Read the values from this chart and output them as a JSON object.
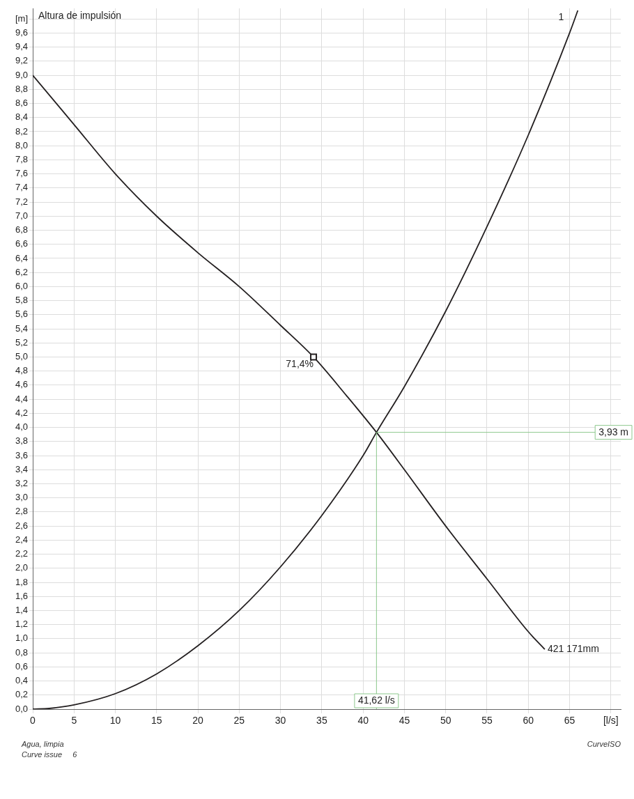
{
  "chart_data": {
    "type": "line",
    "title": "Altura de impulsión",
    "xlim": [
      0,
      71.2
    ],
    "ylim": [
      0,
      9.95
    ],
    "xticks": [
      0,
      5,
      10,
      15,
      20,
      25,
      30,
      35,
      40,
      45,
      50,
      55,
      60,
      65,
      {
        "value": 70,
        "label": "[l/s]"
      }
    ],
    "yticks": [
      {
        "value": 0,
        "label": "0,0"
      },
      {
        "value": 0.2,
        "label": "0,2"
      },
      {
        "value": 0.4,
        "label": "0,4"
      },
      {
        "value": 0.6,
        "label": "0,6"
      },
      {
        "value": 0.8,
        "label": "0,8"
      },
      {
        "value": 1,
        "label": "1,0"
      },
      {
        "value": 1.2,
        "label": "1,2"
      },
      {
        "value": 1.4,
        "label": "1,4"
      },
      {
        "value": 1.6,
        "label": "1,6"
      },
      {
        "value": 1.8,
        "label": "1,8"
      },
      {
        "value": 2,
        "label": "2,0"
      },
      {
        "value": 2.2,
        "label": "2,2"
      },
      {
        "value": 2.4,
        "label": "2,4"
      },
      {
        "value": 2.6,
        "label": "2,6"
      },
      {
        "value": 2.8,
        "label": "2,8"
      },
      {
        "value": 3,
        "label": "3,0"
      },
      {
        "value": 3.2,
        "label": "3,2"
      },
      {
        "value": 3.4,
        "label": "3,4"
      },
      {
        "value": 3.6,
        "label": "3,6"
      },
      {
        "value": 3.8,
        "label": "3,8"
      },
      {
        "value": 4,
        "label": "4,0"
      },
      {
        "value": 4.2,
        "label": "4,2"
      },
      {
        "value": 4.4,
        "label": "4,4"
      },
      {
        "value": 4.6,
        "label": "4,6"
      },
      {
        "value": 4.8,
        "label": "4,8"
      },
      {
        "value": 5,
        "label": "5,0"
      },
      {
        "value": 5.2,
        "label": "5,2"
      },
      {
        "value": 5.4,
        "label": "5,4"
      },
      {
        "value": 5.6,
        "label": "5,6"
      },
      {
        "value": 5.8,
        "label": "5,8"
      },
      {
        "value": 6,
        "label": "6,0"
      },
      {
        "value": 6.2,
        "label": "6,2"
      },
      {
        "value": 6.4,
        "label": "6,4"
      },
      {
        "value": 6.6,
        "label": "6,6"
      },
      {
        "value": 6.8,
        "label": "6,8"
      },
      {
        "value": 7,
        "label": "7,0"
      },
      {
        "value": 7.2,
        "label": "7,2"
      },
      {
        "value": 7.4,
        "label": "7,4"
      },
      {
        "value": 7.6,
        "label": "7,6"
      },
      {
        "value": 7.8,
        "label": "7,8"
      },
      {
        "value": 8,
        "label": "8,0"
      },
      {
        "value": 8.2,
        "label": "8,2"
      },
      {
        "value": 8.4,
        "label": "8,4"
      },
      {
        "value": 8.6,
        "label": "8,6"
      },
      {
        "value": 8.8,
        "label": "8,8"
      },
      {
        "value": 9,
        "label": "9,0"
      },
      {
        "value": 9.2,
        "label": "9,2"
      },
      {
        "value": 9.4,
        "label": "9,4"
      },
      {
        "value": 9.6,
        "label": "9,6"
      },
      {
        "value": 9.8,
        "label": "[m]"
      }
    ],
    "grid": true,
    "legend": false,
    "marker": "none",
    "line_style": "solid",
    "series": [
      {
        "name": "421 171mm",
        "color": "#231f20",
        "x": [
          0,
          5,
          10,
          15,
          20,
          25,
          30,
          34,
          38,
          41.62,
          45,
          50,
          55,
          60,
          62
        ],
        "values": [
          9.0,
          8.3,
          7.6,
          7.0,
          6.48,
          6.0,
          5.45,
          5.0,
          4.45,
          3.93,
          3.4,
          2.6,
          1.85,
          1.1,
          0.85
        ]
      },
      {
        "name": "1",
        "color": "#231f20",
        "x": [
          0,
          2,
          5,
          10,
          15,
          20,
          25,
          30,
          35,
          40,
          41.62,
          45,
          50,
          55,
          60,
          65,
          66
        ],
        "values": [
          0,
          0.01,
          0.06,
          0.22,
          0.5,
          0.9,
          1.4,
          2.02,
          2.75,
          3.6,
          3.93,
          4.58,
          5.65,
          6.85,
          8.15,
          9.6,
          9.92
        ]
      }
    ],
    "ref_lines": [
      {
        "axis": "y",
        "value": 3.93,
        "label": "3,93 m",
        "color": "#8cc88c"
      },
      {
        "axis": "x",
        "value": 41.62,
        "label": "41,62 l/s",
        "color": "#8cc88c"
      }
    ],
    "annotations": [
      {
        "text": "71,4%",
        "x": 34,
        "y": 5.0
      },
      "Agua, limpia",
      "Curve issue     6",
      "CurveISO"
    ]
  }
}
